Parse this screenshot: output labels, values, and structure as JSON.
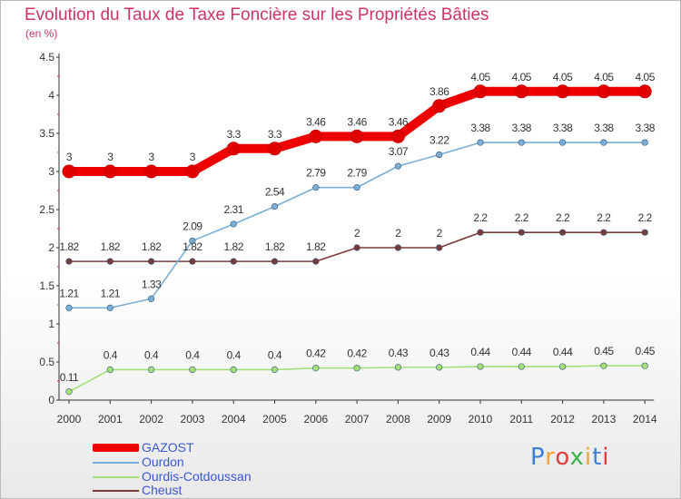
{
  "title": "Evolution du Taux de Taxe Foncière sur les Propriétés Bâties",
  "unit": "(en %)",
  "brand": "Proxiti",
  "chart_data": {
    "type": "line",
    "title": "Evolution du Taux de Taxe Foncière sur les Propriétés Bâties",
    "ylabel": "(en %)",
    "xlabel": "",
    "x": [
      "2000",
      "2001",
      "2002",
      "2003",
      "2004",
      "2005",
      "2006",
      "2007",
      "2008",
      "2009",
      "2010",
      "2011",
      "2012",
      "2013",
      "2014"
    ],
    "ylim": [
      0,
      4.5
    ],
    "yticks": [
      "0",
      "0.5",
      "1",
      "1.5",
      "2",
      "2.5",
      "3",
      "3.5",
      "4",
      "4.5"
    ],
    "grid": false,
    "legend_position": "bottom-left",
    "series": [
      {
        "name": "GAZOST",
        "color": "#ee0000",
        "highlight": true,
        "values": [
          3,
          3,
          3,
          3,
          3.3,
          3.3,
          3.46,
          3.46,
          3.46,
          3.86,
          4.05,
          4.05,
          4.05,
          4.05,
          4.05
        ],
        "labels": [
          "3",
          "3",
          "3",
          "3",
          "3.3",
          "3.3",
          "3.46",
          "3.46",
          "3.46",
          "3.86",
          "4.05",
          "4.05",
          "4.05",
          "4.05",
          "4.05"
        ]
      },
      {
        "name": "Ourdon",
        "color": "#7aaed6",
        "values": [
          1.21,
          1.21,
          1.33,
          2.09,
          2.31,
          2.54,
          2.79,
          2.79,
          3.07,
          3.22,
          3.38,
          3.38,
          3.38,
          3.38,
          3.38
        ],
        "labels": [
          "1.21",
          "1.21",
          "1.33",
          "2.09",
          "2.31",
          "2.54",
          "2.79",
          "2.79",
          "3.07",
          "3.22",
          "3.38",
          "3.38",
          "3.38",
          "3.38",
          "3.38"
        ]
      },
      {
        "name": "Ourdis-Cotdoussan",
        "color": "#a3e07a",
        "values": [
          0.11,
          0.4,
          0.4,
          0.4,
          0.4,
          0.4,
          0.42,
          0.42,
          0.43,
          0.43,
          0.44,
          0.44,
          0.44,
          0.45,
          0.45
        ],
        "labels": [
          "0.11",
          "0.4",
          "0.4",
          "0.4",
          "0.4",
          "0.4",
          "0.42",
          "0.42",
          "0.43",
          "0.43",
          "0.44",
          "0.44",
          "0.44",
          "0.45",
          "0.45"
        ]
      },
      {
        "name": "Cheust",
        "color": "#7a3a3a",
        "values": [
          1.82,
          1.82,
          1.82,
          1.82,
          1.82,
          1.82,
          1.82,
          2,
          2,
          2,
          2.2,
          2.2,
          2.2,
          2.2,
          2.2
        ],
        "labels": [
          "1.82",
          "1.82",
          "1.82",
          "1.82",
          "1.82",
          "1.82",
          "1.82",
          "2",
          "2",
          "2",
          "2.2",
          "2.2",
          "2.2",
          "2.2",
          "2.2"
        ]
      }
    ]
  }
}
